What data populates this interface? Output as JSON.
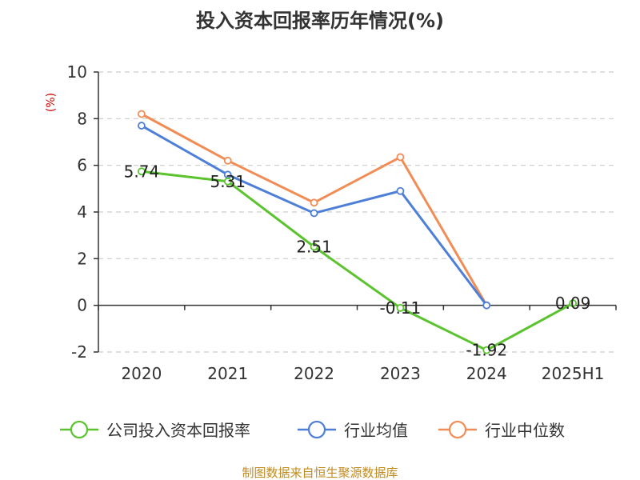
{
  "chart_data": {
    "type": "line",
    "title": "投入资本回报率历年情况(%)",
    "ylabel": "(%)",
    "categories": [
      "2020",
      "2021",
      "2022",
      "2023",
      "2024",
      "2025H1"
    ],
    "y_ticks": [
      "10",
      "8",
      "6",
      "4",
      "2",
      "0",
      "-2"
    ],
    "ylim": [
      -2,
      10
    ],
    "grid": true,
    "legend_position": "bottom",
    "series": [
      {
        "name": "公司投入资本回报率",
        "color": "#5ac32e",
        "values": [
          5.74,
          5.31,
          2.51,
          -0.11,
          -1.92,
          0.09
        ],
        "labels": [
          "5.74",
          "5.31",
          "2.51",
          "-0.11",
          "-1.92",
          "0.09"
        ]
      },
      {
        "name": "行业均值",
        "color": "#4e7fd8",
        "values": [
          7.7,
          5.6,
          3.95,
          4.9,
          0.0,
          null
        ]
      },
      {
        "name": "行业中位数",
        "color": "#f28c55",
        "values": [
          8.2,
          6.2,
          4.4,
          6.35,
          0.0,
          null
        ]
      }
    ],
    "source": "制图数据来自恒生聚源数据库"
  }
}
